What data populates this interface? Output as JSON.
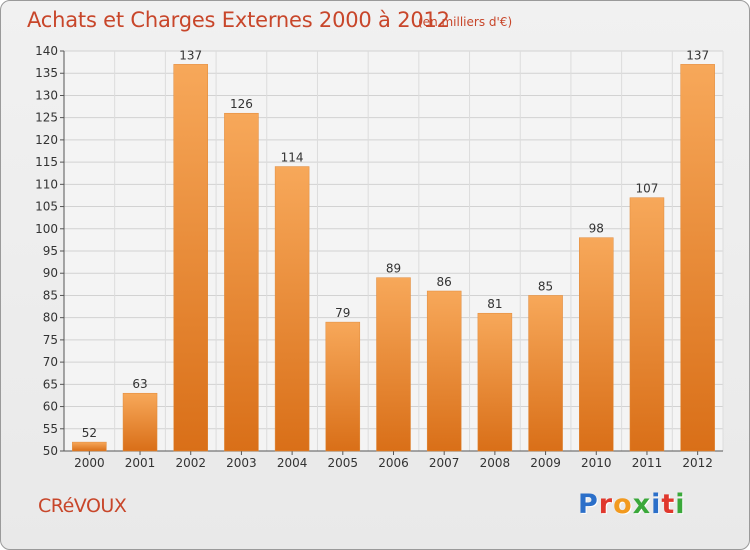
{
  "chart_data": {
    "type": "bar",
    "title": "Achats et Charges Externes 2000 à 2012",
    "subtitle": "(en milliers d'€)",
    "categories": [
      "2000",
      "2001",
      "2002",
      "2003",
      "2004",
      "2005",
      "2006",
      "2007",
      "2008",
      "2009",
      "2010",
      "2011",
      "2012"
    ],
    "values": [
      52,
      63,
      137,
      126,
      114,
      79,
      89,
      86,
      81,
      85,
      98,
      107,
      137
    ],
    "ylim": [
      50,
      140
    ],
    "yticks": [
      50,
      55,
      60,
      65,
      70,
      75,
      80,
      85,
      90,
      95,
      100,
      105,
      110,
      115,
      120,
      125,
      130,
      135,
      140
    ],
    "grid": true,
    "colors": {
      "bar_light": "#f7a85a",
      "bar_dark": "#d96f18",
      "title": "#c8462a"
    }
  },
  "footer": {
    "commune": "CRéVOUX",
    "logo": "Proxiti"
  }
}
